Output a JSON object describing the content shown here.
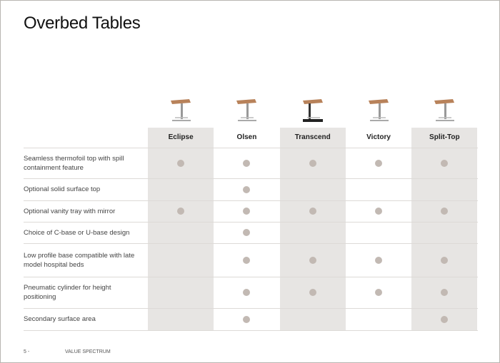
{
  "title": "Overbed Tables",
  "table": {
    "columns": [
      {
        "name": "Eclipse",
        "shaded": true
      },
      {
        "name": "Olsen",
        "shaded": false
      },
      {
        "name": "Transcend",
        "shaded": true
      },
      {
        "name": "Victory",
        "shaded": false
      },
      {
        "name": "Split-Top",
        "shaded": true
      }
    ],
    "rows": [
      {
        "feature": "Seamless thermofoil top with spill containment feature",
        "marks": [
          true,
          true,
          true,
          true,
          true
        ]
      },
      {
        "feature": "Optional solid surface top",
        "marks": [
          false,
          true,
          false,
          false,
          false
        ]
      },
      {
        "feature": "Optional vanity tray with mirror",
        "marks": [
          true,
          true,
          true,
          true,
          true
        ]
      },
      {
        "feature": "Choice of C-base or U-base design",
        "marks": [
          false,
          true,
          false,
          false,
          false
        ]
      },
      {
        "feature": "Low profile base compatible with late model hospital beds",
        "marks": [
          false,
          true,
          true,
          true,
          true
        ]
      },
      {
        "feature": "Pneumatic cylinder for height positioning",
        "marks": [
          false,
          true,
          true,
          true,
          true
        ]
      },
      {
        "feature": "Secondary surface area",
        "marks": [
          false,
          true,
          false,
          false,
          true
        ]
      }
    ]
  },
  "footer": {
    "page": "5 -",
    "label": "VALUE SPECTRUM"
  }
}
